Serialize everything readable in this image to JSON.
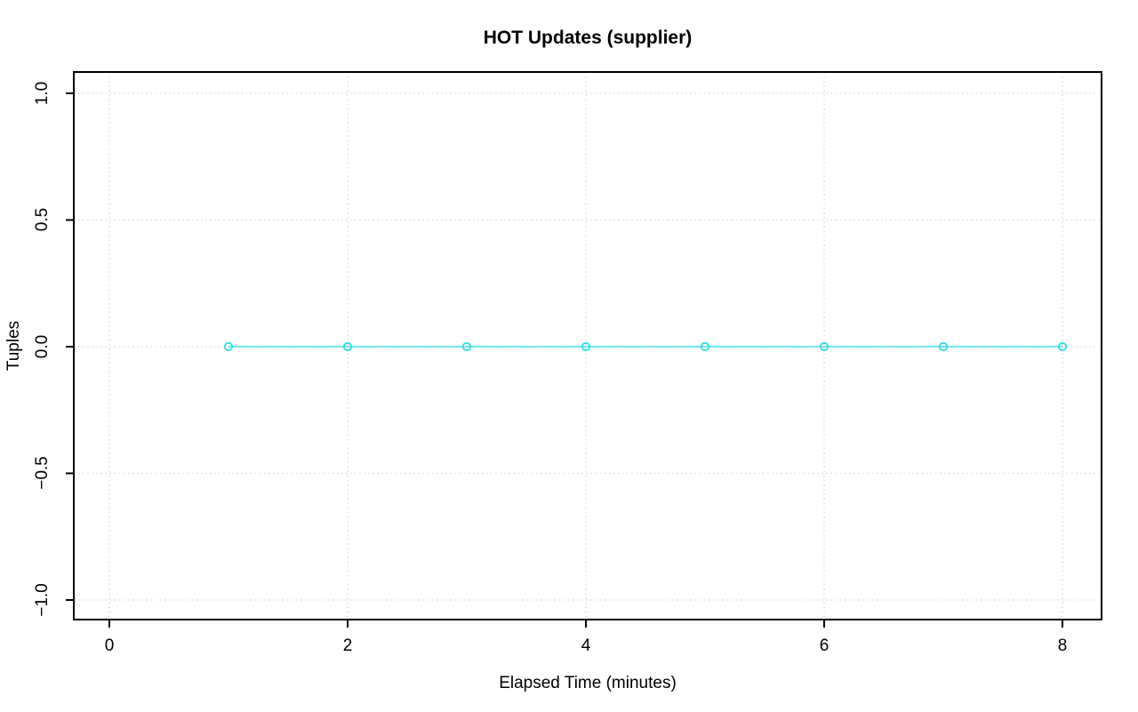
{
  "chart_data": {
    "type": "line",
    "title": "HOT Updates (supplier)",
    "xlabel": "Elapsed Time (minutes)",
    "ylabel": "Tuples",
    "x": [
      1,
      2,
      3,
      4,
      5,
      6,
      7,
      8
    ],
    "series": [
      {
        "name": "supplier",
        "values": [
          0,
          0,
          0,
          0,
          0,
          0,
          0,
          0
        ],
        "marker": "open-circle",
        "line_style": "solid"
      }
    ],
    "xticks": {
      "values": [
        0,
        2,
        4,
        6,
        8
      ],
      "labels": [
        "0",
        "2",
        "4",
        "6",
        "8"
      ]
    },
    "yticks": {
      "values": [
        -1,
        -0.5,
        0,
        0.5,
        1
      ],
      "labels": [
        "−1.0",
        "−0.5",
        "0.0",
        "0.5",
        "1.0"
      ]
    },
    "xlim": [
      -0.2985,
      8.3284
    ],
    "ylim": [
      -1.0772,
      1.0842
    ],
    "grid": "dotted gridlines at all axis ticks",
    "legend": "none",
    "colors": {
      "line": "#6beded",
      "marker": "#2cdfe6",
      "grid": "#d2d2d2",
      "axis": "#000000",
      "background": "#ffffff"
    }
  }
}
